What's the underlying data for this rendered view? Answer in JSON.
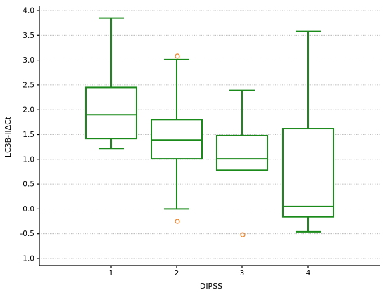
{
  "chart_data": {
    "type": "boxplot",
    "xlabel": "DIPSS",
    "ylabel": "LC3B-IIΔCt",
    "ylim": [
      -1.0,
      4.0
    ],
    "yticks": [
      "4.0",
      "3.5",
      "3.0",
      "2.5",
      "2.0",
      "1.5",
      "1.0",
      "0.5",
      "0.0",
      "-0.5",
      "-1.0"
    ],
    "grid": true,
    "categories": [
      "1",
      "2",
      "3",
      "4"
    ],
    "boxes": [
      {
        "category": "1",
        "whisker_low": 1.22,
        "q1": 1.42,
        "median": 1.9,
        "q3": 2.45,
        "whisker_high": 3.85,
        "outliers": []
      },
      {
        "category": "2",
        "whisker_low": 0.0,
        "q1": 1.01,
        "median": 1.39,
        "q3": 1.8,
        "whisker_high": 3.01,
        "outliers": [
          3.08,
          -0.25
        ]
      },
      {
        "category": "3",
        "whisker_low": 0.78,
        "q1": 0.78,
        "median": 1.01,
        "q3": 1.48,
        "whisker_high": 2.39,
        "outliers": [
          -0.52
        ]
      },
      {
        "category": "4",
        "whisker_low": -0.46,
        "q1": -0.16,
        "median": 0.05,
        "q3": 1.62,
        "whisker_high": 3.58,
        "outliers": []
      }
    ],
    "colors": {
      "box": "#1a8a1a",
      "outlier": "#ee8a33",
      "grid": "#a8a8a8"
    }
  }
}
